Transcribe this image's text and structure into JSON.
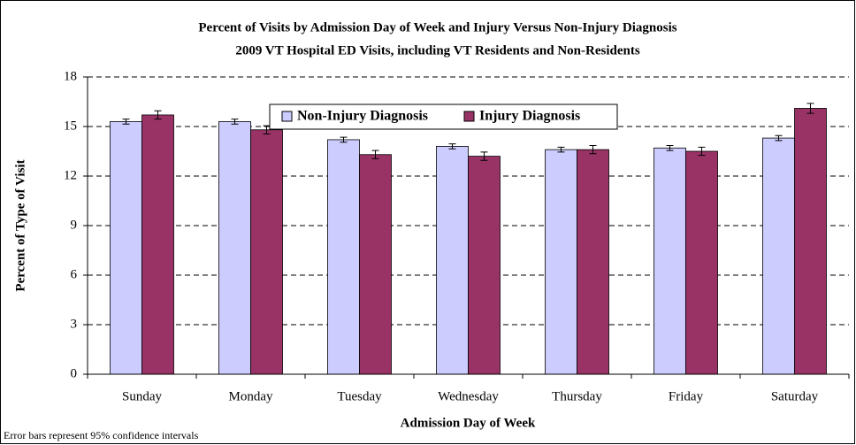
{
  "chart_data": {
    "type": "bar",
    "title": "Percent of Visits by Admission Day of Week and Injury Versus Non-Injury Diagnosis",
    "subtitle": "2009 VT Hospital ED Visits, including VT Residents and Non-Residents",
    "x_label": "Admission Day of Week",
    "y_label": "Percent of Type of Visit",
    "annotation": "Error bars represent 95% confidence intervals",
    "categories": [
      "Sunday",
      "Monday",
      "Tuesday",
      "Wednesday",
      "Thursday",
      "Friday",
      "Saturday"
    ],
    "series": [
      {
        "name": "Non-Injury Diagnosis",
        "color": "#ccccff",
        "values": [
          15.3,
          15.3,
          14.2,
          13.8,
          13.6,
          13.7,
          14.3
        ],
        "errors": [
          0.15,
          0.15,
          0.15,
          0.15,
          0.15,
          0.15,
          0.15
        ]
      },
      {
        "name": "Injury Diagnosis",
        "color": "#993366",
        "values": [
          15.7,
          14.8,
          13.3,
          13.2,
          13.6,
          13.5,
          16.1
        ],
        "errors": [
          0.25,
          0.25,
          0.25,
          0.25,
          0.25,
          0.25,
          0.3
        ]
      }
    ],
    "ylim": [
      0,
      18
    ],
    "yticks": [
      0,
      3,
      6,
      9,
      12,
      15,
      18
    ],
    "grid": true,
    "legend": "top"
  }
}
